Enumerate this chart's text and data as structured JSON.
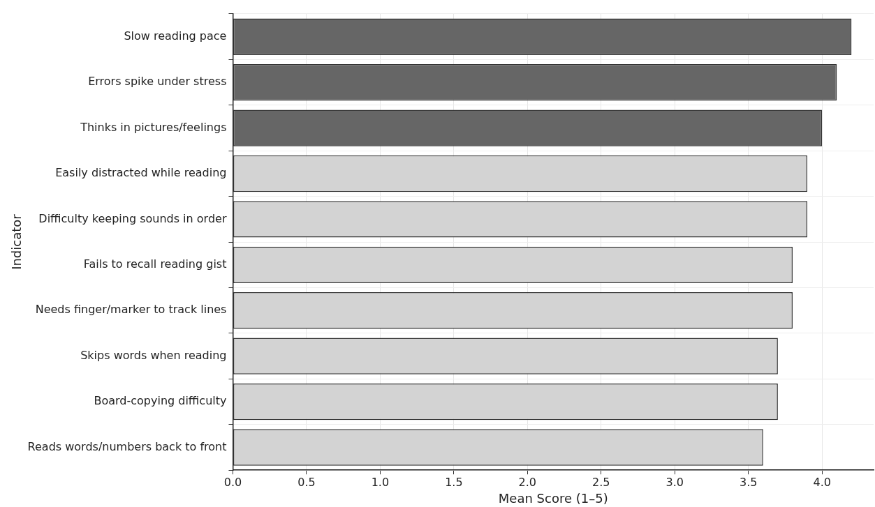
{
  "chart_data": {
    "type": "bar",
    "orientation": "horizontal",
    "xlabel": "Mean Score (1–5)",
    "ylabel": "Indicator",
    "categories": [
      "Slow reading pace",
      "Errors spike under stress",
      "Thinks in pictures/feelings",
      "Easily distracted while reading",
      "Difficulty keeping sounds in order",
      "Fails to recall reading gist",
      "Needs finger/marker to track lines",
      "Skips words when reading",
      "Board-copying difficulty",
      "Reads words/numbers back to front"
    ],
    "values": [
      4.2,
      4.1,
      4.0,
      3.9,
      3.9,
      3.8,
      3.8,
      3.7,
      3.7,
      3.6
    ],
    "colors": [
      "#666666",
      "#666666",
      "#666666",
      "#d3d3d3",
      "#d3d3d3",
      "#d3d3d3",
      "#d3d3d3",
      "#d3d3d3",
      "#d3d3d3",
      "#d3d3d3"
    ],
    "xlim": [
      0,
      4.35
    ],
    "xticks": [
      {
        "value": 0,
        "label": "0.0"
      },
      {
        "value": 0.5,
        "label": "0.5"
      },
      {
        "value": 1,
        "label": "1.0"
      },
      {
        "value": 1.5,
        "label": "1.5"
      },
      {
        "value": 2,
        "label": "2.0"
      },
      {
        "value": 2.5,
        "label": "2.5"
      },
      {
        "value": 3,
        "label": "3.0"
      },
      {
        "value": 3.5,
        "label": "3.5"
      },
      {
        "value": 4,
        "label": "4.0"
      }
    ],
    "grid": true,
    "legend": false
  }
}
